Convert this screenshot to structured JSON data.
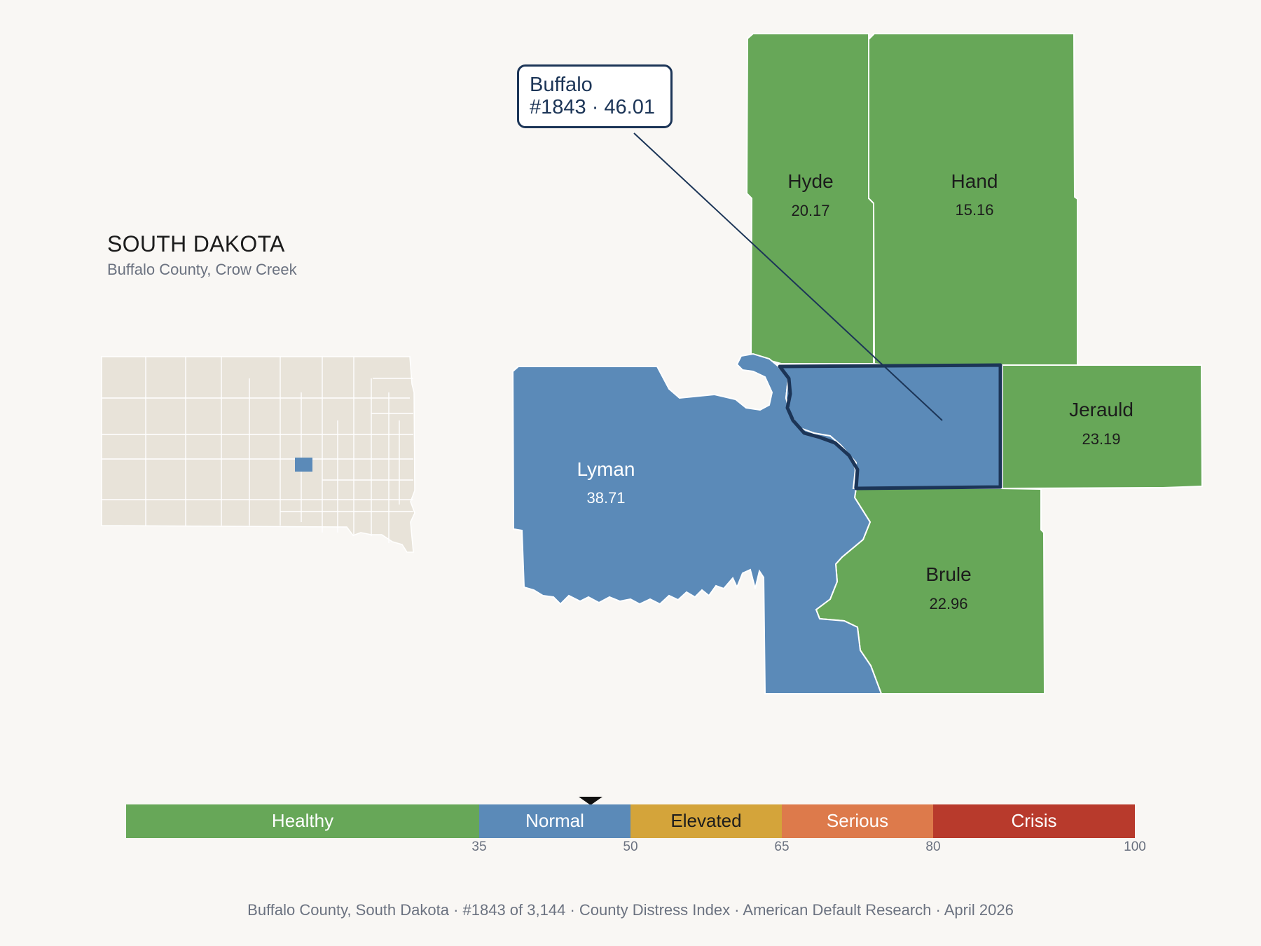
{
  "header": {
    "state": "SOUTH DAKOTA",
    "subtitle": "Buffalo County, Crow Creek"
  },
  "callout": {
    "name": "Buffalo",
    "detail": "#1843 · 46.01"
  },
  "counties": [
    {
      "name": "Hyde",
      "value": "20.17",
      "category": "Healthy"
    },
    {
      "name": "Hand",
      "value": "15.16",
      "category": "Healthy"
    },
    {
      "name": "Jerauld",
      "value": "23.19",
      "category": "Healthy"
    },
    {
      "name": "Brule",
      "value": "22.96",
      "category": "Healthy"
    },
    {
      "name": "Lyman",
      "value": "38.71",
      "category": "Normal"
    },
    {
      "name": "Buffalo",
      "value": "46.01",
      "category": "Normal",
      "highlighted": true
    }
  ],
  "legend": {
    "segments": [
      {
        "label": "Healthy",
        "from": 0,
        "to": 35,
        "color": "#67a758"
      },
      {
        "label": "Normal",
        "from": 35,
        "to": 50,
        "color": "#5b8ab8"
      },
      {
        "label": "Elevated",
        "from": 50,
        "to": 65,
        "color": "#d4a43a"
      },
      {
        "label": "Serious",
        "from": 65,
        "to": 80,
        "color": "#dd7a4b"
      },
      {
        "label": "Crisis",
        "from": 80,
        "to": 100,
        "color": "#b83a2c"
      }
    ],
    "ticks": [
      "35",
      "50",
      "65",
      "80",
      "100"
    ],
    "marker_value": 46.01
  },
  "colors": {
    "healthy": "#67a758",
    "normal": "#5b8ab8",
    "outline": "#1c3557",
    "inset_land": "#e8e3d9"
  },
  "footer": {
    "text": "Buffalo County, South Dakota  ·  #1843 of 3,144  ·  County Distress Index  ·  American Default Research  ·  April 2026"
  }
}
